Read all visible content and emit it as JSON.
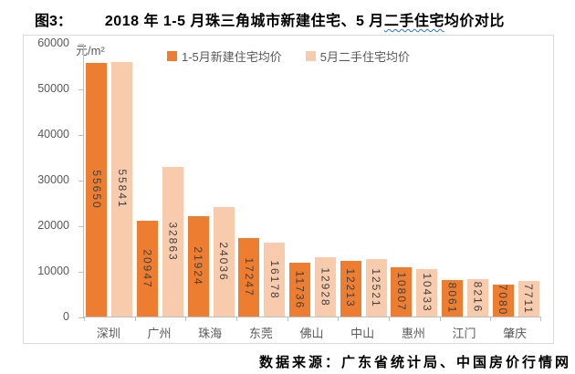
{
  "figure": {
    "label": "图3：",
    "title_before": "2018 年 1-5 月珠三角城市新建住宅、5 月",
    "title_wavy": "二手住宅",
    "title_after": "均价对比"
  },
  "unit_label": "元/m²",
  "legend": {
    "items": [
      {
        "label": "1-5月新建住宅均价",
        "color": "#ED7D31"
      },
      {
        "label": "5月二手住宅均价",
        "color": "#F8CBAD"
      }
    ]
  },
  "source_note": "数据来源：广东省统计局、中国房价行情网",
  "colors": {
    "new_home_bar": "#ED7D31",
    "secondhand_bar": "#F8CBAD",
    "axis_line": "#BFBFBF",
    "axis_text": "#595959",
    "data_label": "#404040",
    "wavy_underline": "#2E75B6",
    "chart_border": "#D9D9D9"
  },
  "chart_data": {
    "type": "bar",
    "title": "2018 年 1-5 月珠三角城市新建住宅、5 月二手住宅均价对比",
    "categories": [
      "深圳",
      "广州",
      "珠海",
      "东莞",
      "佛山",
      "中山",
      "惠州",
      "江门",
      "肇庆"
    ],
    "series": [
      {
        "name": "1-5月新建住宅均价",
        "color": "#ED7D31",
        "values": [
          55650,
          20947,
          21924,
          17247,
          11736,
          12213,
          10807,
          8061,
          7080
        ]
      },
      {
        "name": "5月二手住宅均价",
        "color": "#F8CBAD",
        "values": [
          55841,
          32863,
          24036,
          16178,
          12928,
          12521,
          10433,
          8216,
          7711
        ]
      }
    ],
    "xlabel": "",
    "ylabel": "元/m²",
    "ylim": [
      0,
      60000
    ],
    "ytick_interval": 10000,
    "yticks": [
      60000,
      50000,
      40000,
      30000,
      20000,
      10000,
      0
    ],
    "grid": false,
    "legend_position": "top-center",
    "data_labels": "inside-vertical-rotated"
  }
}
